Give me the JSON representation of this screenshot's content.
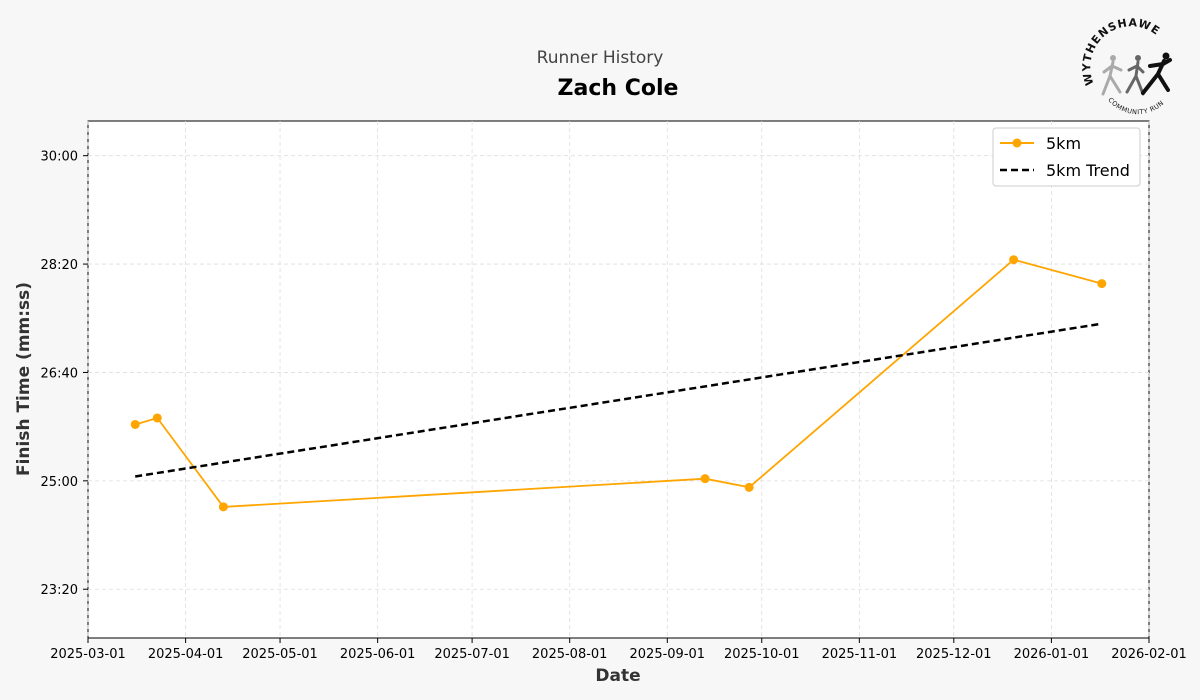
{
  "header": {
    "subtitle": "Runner History",
    "title": "Zach Cole"
  },
  "logo": {
    "top_text": "WYTHENSHAWE",
    "bottom_text": "COMMUNITY RUN",
    "icon": "runners-logo-icon"
  },
  "chart_data": {
    "type": "line",
    "xlabel": "Date",
    "ylabel": "Finish Time (mm:ss)",
    "x_ticks": [
      "2025-03-01",
      "2025-04-01",
      "2025-05-01",
      "2025-06-01",
      "2025-07-01",
      "2025-08-01",
      "2025-09-01",
      "2025-10-01",
      "2025-11-01",
      "2025-12-01",
      "2026-01-01",
      "2026-02-01"
    ],
    "y_ticks": [
      "23:20",
      "25:00",
      "26:40",
      "28:20",
      "30:00"
    ],
    "xlim": [
      "2025-03-01",
      "2026-02-01"
    ],
    "ylim": [
      "22:35",
      "30:32"
    ],
    "grid": true,
    "legend_position": "top-right",
    "series": [
      {
        "name": "5km",
        "style": "solid-with-markers",
        "color": "#FFA500",
        "points": [
          {
            "x": "2025-03-16",
            "y": "25:52"
          },
          {
            "x": "2025-03-23",
            "y": "25:58"
          },
          {
            "x": "2025-04-13",
            "y": "24:36"
          },
          {
            "x": "2025-09-13",
            "y": "25:02"
          },
          {
            "x": "2025-09-27",
            "y": "24:54"
          },
          {
            "x": "2025-12-20",
            "y": "28:24"
          },
          {
            "x": "2026-01-17",
            "y": "28:02"
          }
        ]
      },
      {
        "name": "5km Trend",
        "style": "dashed",
        "color": "#000000",
        "points": [
          {
            "x": "2025-03-16",
            "y": "25:04"
          },
          {
            "x": "2026-01-17",
            "y": "27:25"
          }
        ]
      }
    ]
  }
}
